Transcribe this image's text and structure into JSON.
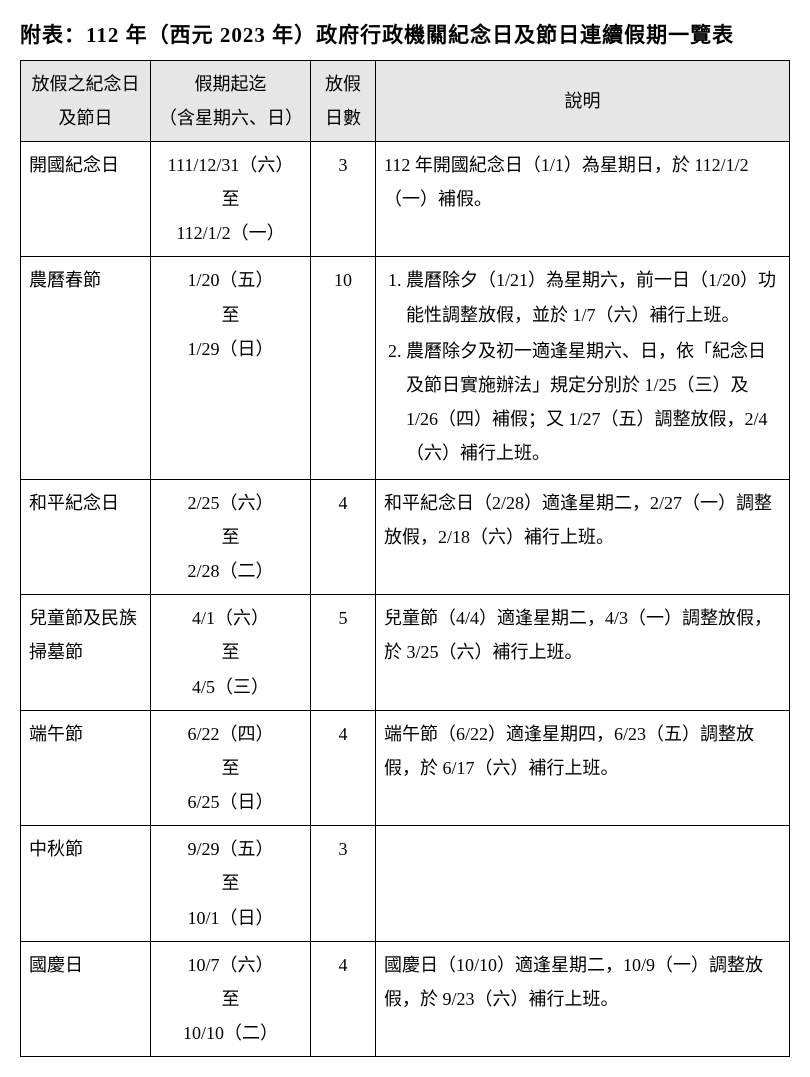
{
  "title": "附表：112 年（西元 2023 年）政府行政機關紀念日及節日連續假期一覽表",
  "headers": {
    "col1": "放假之紀念日及節日",
    "col2": "假期起迄\n（含星期六、日）",
    "col3": "放假日數",
    "col4": "說明"
  },
  "rows": [
    {
      "name": "開國紀念日",
      "period": [
        "111/12/31（六）",
        "至",
        "112/1/2（一）"
      ],
      "days": "3",
      "desc": "112 年開國紀念日（1/1）為星期日，於 112/1/2（一）補假。"
    },
    {
      "name": "農曆春節",
      "period": [
        "1/20（五）",
        "至",
        "1/29（日）"
      ],
      "days": "10",
      "desc_list": [
        "農曆除夕（1/21）為星期六，前一日（1/20）功能性調整放假，並於 1/7（六）補行上班。",
        "農曆除夕及初一適逢星期六、日，依「紀念日及節日實施辦法」規定分別於 1/25（三）及 1/26（四）補假；又 1/27（五）調整放假，2/4（六）補行上班。"
      ]
    },
    {
      "name": "和平紀念日",
      "period": [
        "2/25（六）",
        "至",
        "2/28（二）"
      ],
      "days": "4",
      "desc": "和平紀念日（2/28）適逢星期二，2/27（一）調整放假，2/18（六）補行上班。"
    },
    {
      "name": "兒童節及民族掃墓節",
      "period": [
        "4/1（六）",
        "至",
        "4/5（三）"
      ],
      "days": "5",
      "desc": "兒童節（4/4）適逢星期二，4/3（一）調整放假，於 3/25（六）補行上班。"
    },
    {
      "name": "端午節",
      "period": [
        "6/22（四）",
        "至",
        "6/25（日）"
      ],
      "days": "4",
      "desc": "端午節（6/22）適逢星期四，6/23（五）調整放假，於 6/17（六）補行上班。"
    },
    {
      "name": "中秋節",
      "period": [
        "9/29（五）",
        "至",
        "10/1（日）"
      ],
      "days": "3",
      "desc": ""
    },
    {
      "name": "國慶日",
      "period": [
        "10/7（六）",
        "至",
        "10/10（二）"
      ],
      "days": "4",
      "desc": "國慶日（10/10）適逢星期二，10/9（一）調整放假，於 9/23（六）補行上班。"
    }
  ]
}
